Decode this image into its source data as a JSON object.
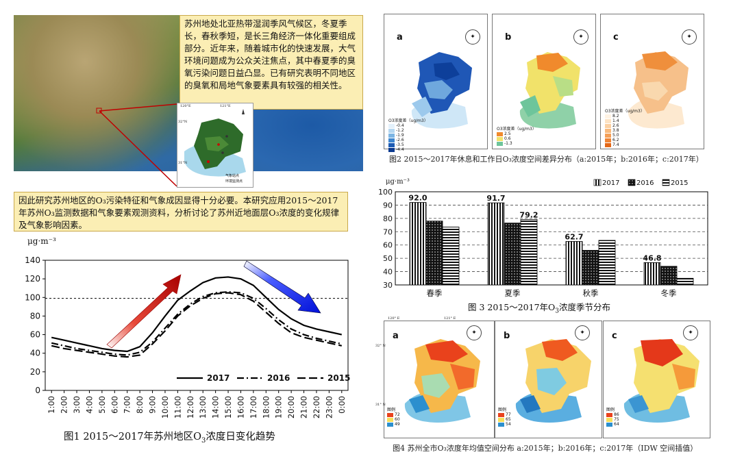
{
  "intro": {
    "para1": "苏州地处北亚热带湿润季风气候区，冬夏季长，春秋季短，是长三角经济一体化重要组成部分。近年来，随着城市化的快速发展，大气环境问题成为公众关注焦点，其中春夏季的臭氧污染问题日益凸显。已有研究表明不同地区的臭氧和局地气象要素具有较强的相关性。",
    "para2": "因此研究苏州地区的O₃污染特征和气象成因显得十分必要。本研究应用2015～2017年苏州O₃监测数据和气象要素观测资料，分析讨论了苏州近地面层O₃浓度的变化规律及气象影响因素。"
  },
  "inset_map": {
    "lon1": "120°E",
    "lon2": "121°E",
    "lat1": "32°N",
    "lat2": "31°N",
    "legend1": "气象站点",
    "legend2": "环境监测点"
  },
  "fig1": {
    "caption_prefix": "图1  2015～2017年苏州地区O",
    "caption_sub": "3",
    "caption_suffix": "浓度日变化趋势",
    "unit": "μg·m⁻³",
    "legend": [
      "2017",
      "2016",
      "2015"
    ]
  },
  "fig2": {
    "caption": "图2  2015～2017年休息和工作日O₃浓度空间差异分布（a:2015年；b:2016年；c:2017年）",
    "panels": [
      "a",
      "b",
      "c"
    ],
    "legend_title": "O3浓度差（ug/m3）",
    "legend_a": [
      "-0.4",
      "-1.2",
      "-1.9",
      "-2.6",
      "-3.5",
      "-4.4"
    ],
    "legend_b": [
      "2.5",
      "0.6",
      "-1.3"
    ],
    "legend_c": [
      "8.2",
      "1.4",
      "2.6",
      "3.8",
      "5.0",
      "6.2",
      "7.4"
    ]
  },
  "fig3": {
    "caption_prefix": "图 3   2015～2017年O",
    "caption_sub": "3",
    "caption_suffix": "浓度季节分布",
    "unit": "μg·m⁻³"
  },
  "fig4": {
    "caption": "图4  苏州全市O₃浓度年均值空间分布  a:2015年；b:2016年；c:2017年（IDW 空间插值）",
    "panels": [
      "a",
      "b",
      "c"
    ],
    "legend_title": "图例",
    "legend_a": [
      "72",
      "60",
      "49"
    ],
    "legend_b": [
      "77",
      "65",
      "54"
    ],
    "legend_c": [
      "86",
      "75",
      "64"
    ],
    "lon1": "120° E",
    "lon2": "121° E",
    "lat1": "32° N",
    "lat2": "31° N"
  },
  "chart_data": [
    {
      "type": "line",
      "title": "2015～2017年苏州地区O3浓度日变化趋势",
      "ylabel": "μg·m⁻³",
      "xlabel": "",
      "ylim": [
        0,
        140
      ],
      "yticks": [
        0,
        20,
        40,
        60,
        80,
        100,
        120,
        140
      ],
      "x": [
        "1:00",
        "2:00",
        "3:00",
        "4:00",
        "5:00",
        "6:00",
        "7:00",
        "8:00",
        "9:00",
        "10:00",
        "11:00",
        "12:00",
        "13:00",
        "14:00",
        "15:00",
        "16:00",
        "17:00",
        "18:00",
        "19:00",
        "20:00",
        "21:00",
        "22:00",
        "23:00",
        "0:00"
      ],
      "reference_line": 99,
      "series": [
        {
          "name": "2017",
          "style": "solid",
          "values": [
            57,
            54,
            51,
            48,
            45,
            43,
            42,
            47,
            62,
            80,
            97,
            107,
            116,
            121,
            122,
            120,
            113,
            100,
            87,
            77,
            70,
            66,
            63,
            60
          ]
        },
        {
          "name": "2016",
          "style": "dashdot",
          "values": [
            51,
            48,
            45,
            43,
            41,
            39,
            38,
            41,
            52,
            67,
            82,
            93,
            101,
            105,
            106,
            105,
            99,
            88,
            76,
            66,
            60,
            56,
            53,
            50
          ]
        },
        {
          "name": "2015",
          "style": "dashed",
          "values": [
            48,
            45,
            43,
            41,
            39,
            37,
            36,
            38,
            50,
            64,
            80,
            91,
            99,
            104,
            105,
            103,
            96,
            84,
            72,
            62,
            57,
            54,
            51,
            48
          ]
        }
      ]
    },
    {
      "type": "bar",
      "title": "2015～2017年O3浓度季节分布",
      "ylabel": "μg·m⁻³",
      "ylim": [
        30,
        100
      ],
      "yticks": [
        30,
        40,
        50,
        60,
        70,
        80,
        90,
        100
      ],
      "categories": [
        "春季",
        "夏季",
        "秋季",
        "冬季"
      ],
      "series": [
        {
          "name": "2017",
          "pattern": "vertical-stripes",
          "values": [
            92.0,
            91.7,
            62.7,
            46.8
          ]
        },
        {
          "name": "2016",
          "pattern": "dots",
          "values": [
            78,
            76.5,
            56,
            44
          ]
        },
        {
          "name": "2015",
          "pattern": "horizontal-stripes",
          "values": [
            73.5,
            79.2,
            63.5,
            35
          ]
        }
      ],
      "data_labels": [
        "92.0",
        "91.7",
        "79.2",
        "62.7",
        "46.8"
      ]
    }
  ]
}
